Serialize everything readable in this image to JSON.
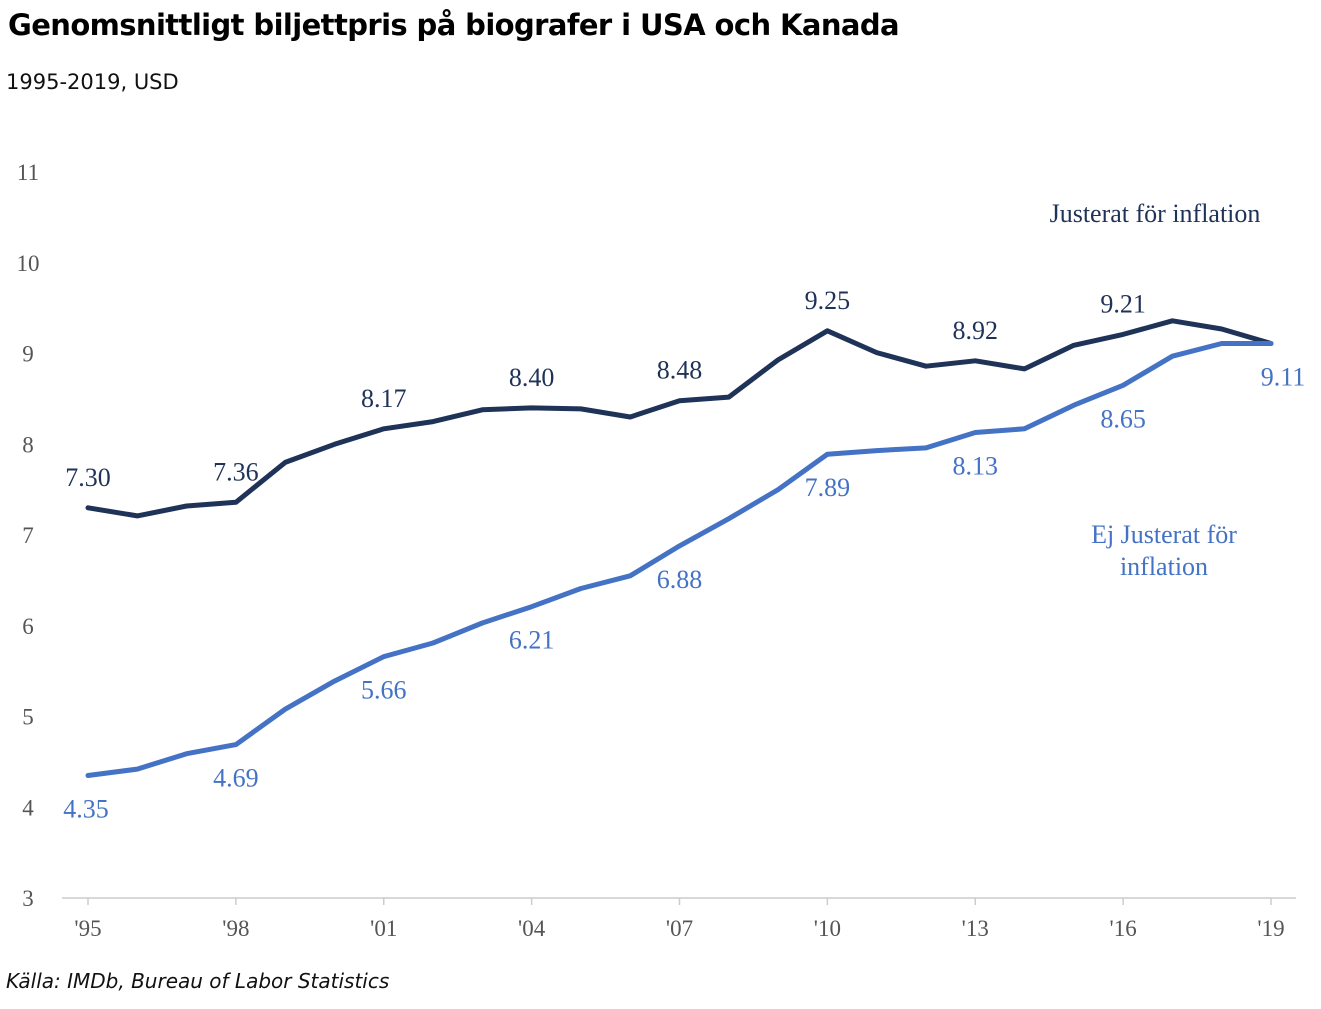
{
  "header": {
    "title": "Genomsnittligt biljettpris på biografer i USA och Kanada",
    "subtitle": "1995-2019, USD"
  },
  "footer": {
    "source": "Källa: IMDb, Bureau of Labor Statistics"
  },
  "colors": {
    "adjusted": "#1f3257",
    "unadjusted": "#4472c4",
    "axis": "#cccccc",
    "tick_text": "#555555"
  },
  "chart_data": {
    "type": "line",
    "x": [
      1995,
      1996,
      1997,
      1998,
      1999,
      2000,
      2001,
      2002,
      2003,
      2004,
      2005,
      2006,
      2007,
      2008,
      2009,
      2010,
      2011,
      2012,
      2013,
      2014,
      2015,
      2016,
      2017,
      2018,
      2019
    ],
    "x_ticks": [
      1995,
      1998,
      2001,
      2004,
      2007,
      2010,
      2013,
      2016,
      2019
    ],
    "x_tick_labels": [
      "'95",
      "'98",
      "'01",
      "'04",
      "'07",
      "'10",
      "'13",
      "'16",
      "'19"
    ],
    "ylim": [
      3,
      11
    ],
    "y_ticks": [
      3,
      4,
      5,
      6,
      7,
      8,
      9,
      10,
      11
    ],
    "grid": false,
    "series": [
      {
        "name": "Justerat för inflation",
        "color": "#1f3257",
        "values": [
          7.3,
          7.21,
          7.32,
          7.36,
          7.8,
          8.0,
          8.17,
          8.25,
          8.38,
          8.4,
          8.39,
          8.3,
          8.48,
          8.52,
          8.93,
          9.25,
          9.01,
          8.86,
          8.92,
          8.83,
          9.09,
          9.21,
          9.36,
          9.27,
          9.11
        ],
        "label_name_lines": [
          "Justerat för inflation"
        ],
        "data_labels": [
          {
            "year": 1995,
            "text": "7.30"
          },
          {
            "year": 1998,
            "text": "7.36"
          },
          {
            "year": 2001,
            "text": "8.17"
          },
          {
            "year": 2004,
            "text": "8.40"
          },
          {
            "year": 2007,
            "text": "8.48"
          },
          {
            "year": 2010,
            "text": "9.25"
          },
          {
            "year": 2013,
            "text": "8.92"
          },
          {
            "year": 2016,
            "text": "9.21"
          }
        ]
      },
      {
        "name": "Ej Justerat för inflation",
        "color": "#4472c4",
        "values": [
          4.35,
          4.42,
          4.59,
          4.69,
          5.08,
          5.39,
          5.66,
          5.81,
          6.03,
          6.21,
          6.41,
          6.55,
          6.88,
          7.18,
          7.5,
          7.89,
          7.93,
          7.96,
          8.13,
          8.17,
          8.43,
          8.65,
          8.97,
          9.11,
          9.11
        ],
        "label_name_lines": [
          "Ej Justerat för",
          "inflation"
        ],
        "data_labels": [
          {
            "year": 1995,
            "text": "4.35"
          },
          {
            "year": 1998,
            "text": "4.69"
          },
          {
            "year": 2001,
            "text": "5.66"
          },
          {
            "year": 2004,
            "text": "6.21"
          },
          {
            "year": 2007,
            "text": "6.88"
          },
          {
            "year": 2010,
            "text": "7.89"
          },
          {
            "year": 2013,
            "text": "8.13"
          },
          {
            "year": 2016,
            "text": "8.65"
          },
          {
            "year": 2019,
            "text": "9.11"
          }
        ]
      }
    ]
  }
}
